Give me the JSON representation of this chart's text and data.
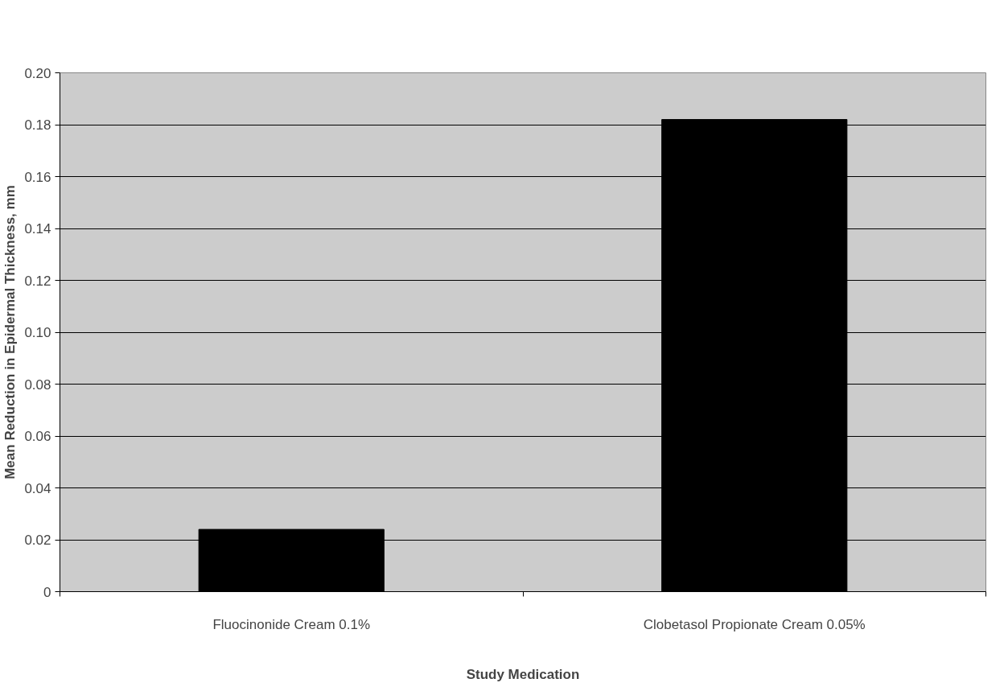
{
  "chart_data": {
    "type": "bar",
    "xlabel": "Study Medication",
    "ylabel": "Mean Reduction in Epidermal Thickness, mm",
    "categories": [
      "Fluocinonide Cream 0.1%",
      "Clobetasol Propionate Cream 0.05%"
    ],
    "values": [
      0.024,
      0.182
    ],
    "color": "#000000",
    "ylim": [
      0,
      0.2
    ],
    "yticks": [
      0,
      0.02,
      0.04,
      0.06,
      0.08,
      {
        "value": 0.1,
        "label": "0.10"
      },
      0.12,
      0.14,
      0.16,
      0.18,
      {
        "value": 0.2,
        "label": "0.20"
      }
    ],
    "grid": "y"
  }
}
